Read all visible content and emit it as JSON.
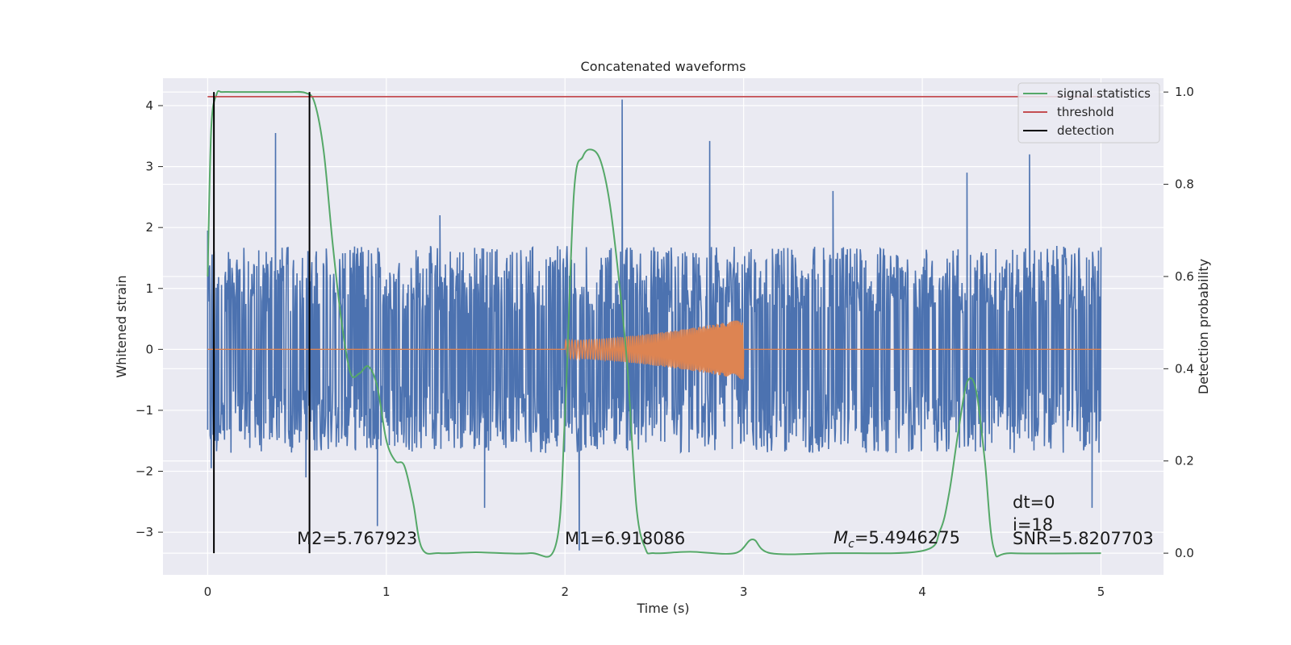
{
  "chart_data": {
    "type": "line",
    "title": "Concatenated waveforms",
    "xlabel": "Time (s)",
    "ylabel": "Whitened strain",
    "ylabel_right": "Detection probability",
    "xlim": [
      -0.25,
      5.35
    ],
    "ylim": [
      -3.7,
      4.45
    ],
    "ylim_right": [
      -0.047,
      1.03
    ],
    "x_ticks": [
      0,
      1,
      2,
      3,
      4,
      5
    ],
    "y_ticks": [
      -3,
      -2,
      -1,
      0,
      1,
      2,
      3,
      4
    ],
    "y_ticks_right": [
      0.0,
      0.2,
      0.4,
      0.6,
      0.8,
      1.0
    ],
    "x_tick_labels": [
      "0",
      "1",
      "2",
      "3",
      "4",
      "5"
    ],
    "y_tick_labels": [
      "−3",
      "−2",
      "−1",
      "0",
      "1",
      "2",
      "3",
      "4"
    ],
    "y_tick_labels_right": [
      "0.0",
      "0.2",
      "0.4",
      "0.6",
      "0.8",
      "1.0"
    ],
    "grid": true,
    "legend_position": "top-right",
    "colors": {
      "noise": "#4c72b0",
      "signal": "#dd8452",
      "statistic": "#55a868",
      "threshold": "#c44e52",
      "detection": "#000000",
      "background": "#eaeaf2",
      "grid": "#ffffff"
    },
    "series": [
      {
        "role": "whitened-noise",
        "axis": "left",
        "x_range": [
          0,
          5
        ],
        "spike_points": [
          [
            0.0,
            1.95
          ],
          [
            0.02,
            -1.95
          ],
          [
            0.38,
            3.55
          ],
          [
            0.55,
            -2.1
          ],
          [
            0.95,
            -2.9
          ],
          [
            1.3,
            2.2
          ],
          [
            1.55,
            -2.6
          ],
          [
            2.08,
            -3.3
          ],
          [
            2.32,
            4.1
          ],
          [
            2.81,
            3.42
          ],
          [
            3.5,
            2.6
          ],
          [
            4.25,
            2.9
          ],
          [
            4.6,
            3.2
          ],
          [
            4.95,
            -2.6
          ]
        ],
        "typical_amplitude": 1.7
      },
      {
        "role": "injected-chirp",
        "axis": "left",
        "x_range": [
          2.0,
          3.0
        ],
        "amplitude_start": 0.15,
        "amplitude_end": 0.5
      },
      {
        "name": "signal statistics",
        "axis": "right",
        "x": [
          0.0,
          0.02,
          0.05,
          0.08,
          0.15,
          0.3,
          0.45,
          0.55,
          0.6,
          0.65,
          0.7,
          0.75,
          0.8,
          0.85,
          0.9,
          0.95,
          1.0,
          1.05,
          1.1,
          1.15,
          1.2,
          1.3,
          1.5,
          1.8,
          1.95,
          2.0,
          2.05,
          2.1,
          2.15,
          2.2,
          2.25,
          2.3,
          2.35,
          2.4,
          2.45,
          2.5,
          2.7,
          2.95,
          3.05,
          3.15,
          3.5,
          4.0,
          4.1,
          4.15,
          4.2,
          4.25,
          4.3,
          4.35,
          4.4,
          4.5,
          5.0
        ],
        "y": [
          0.6,
          0.92,
          0.995,
          1.0,
          1.0,
          1.0,
          1.0,
          0.998,
          0.975,
          0.87,
          0.67,
          0.5,
          0.39,
          0.39,
          0.405,
          0.36,
          0.245,
          0.2,
          0.19,
          0.11,
          0.01,
          0.0,
          0.002,
          0.0,
          0.02,
          0.3,
          0.78,
          0.86,
          0.875,
          0.85,
          0.76,
          0.6,
          0.4,
          0.1,
          0.01,
          0.0,
          0.003,
          0.0,
          0.03,
          0.0,
          0.0,
          0.005,
          0.05,
          0.13,
          0.26,
          0.37,
          0.355,
          0.2,
          0.01,
          0.0,
          0.0
        ]
      },
      {
        "name": "threshold",
        "axis": "right",
        "x": [
          0,
          5
        ],
        "y": [
          0.99,
          0.99
        ]
      },
      {
        "name": "detection",
        "axis": "right",
        "x": [
          0.035,
          0.57
        ],
        "y_span": [
          0.0,
          1.0
        ]
      }
    ],
    "annotations": {
      "m2": "M2=5.767923",
      "m1": "M1=6.918086",
      "mc_symbol": "M",
      "mc_subscript": "c",
      "mc_value": "=5.4946275",
      "dt": "dt=0",
      "i": "i=18",
      "snr": "SNR=5.8207703"
    }
  }
}
